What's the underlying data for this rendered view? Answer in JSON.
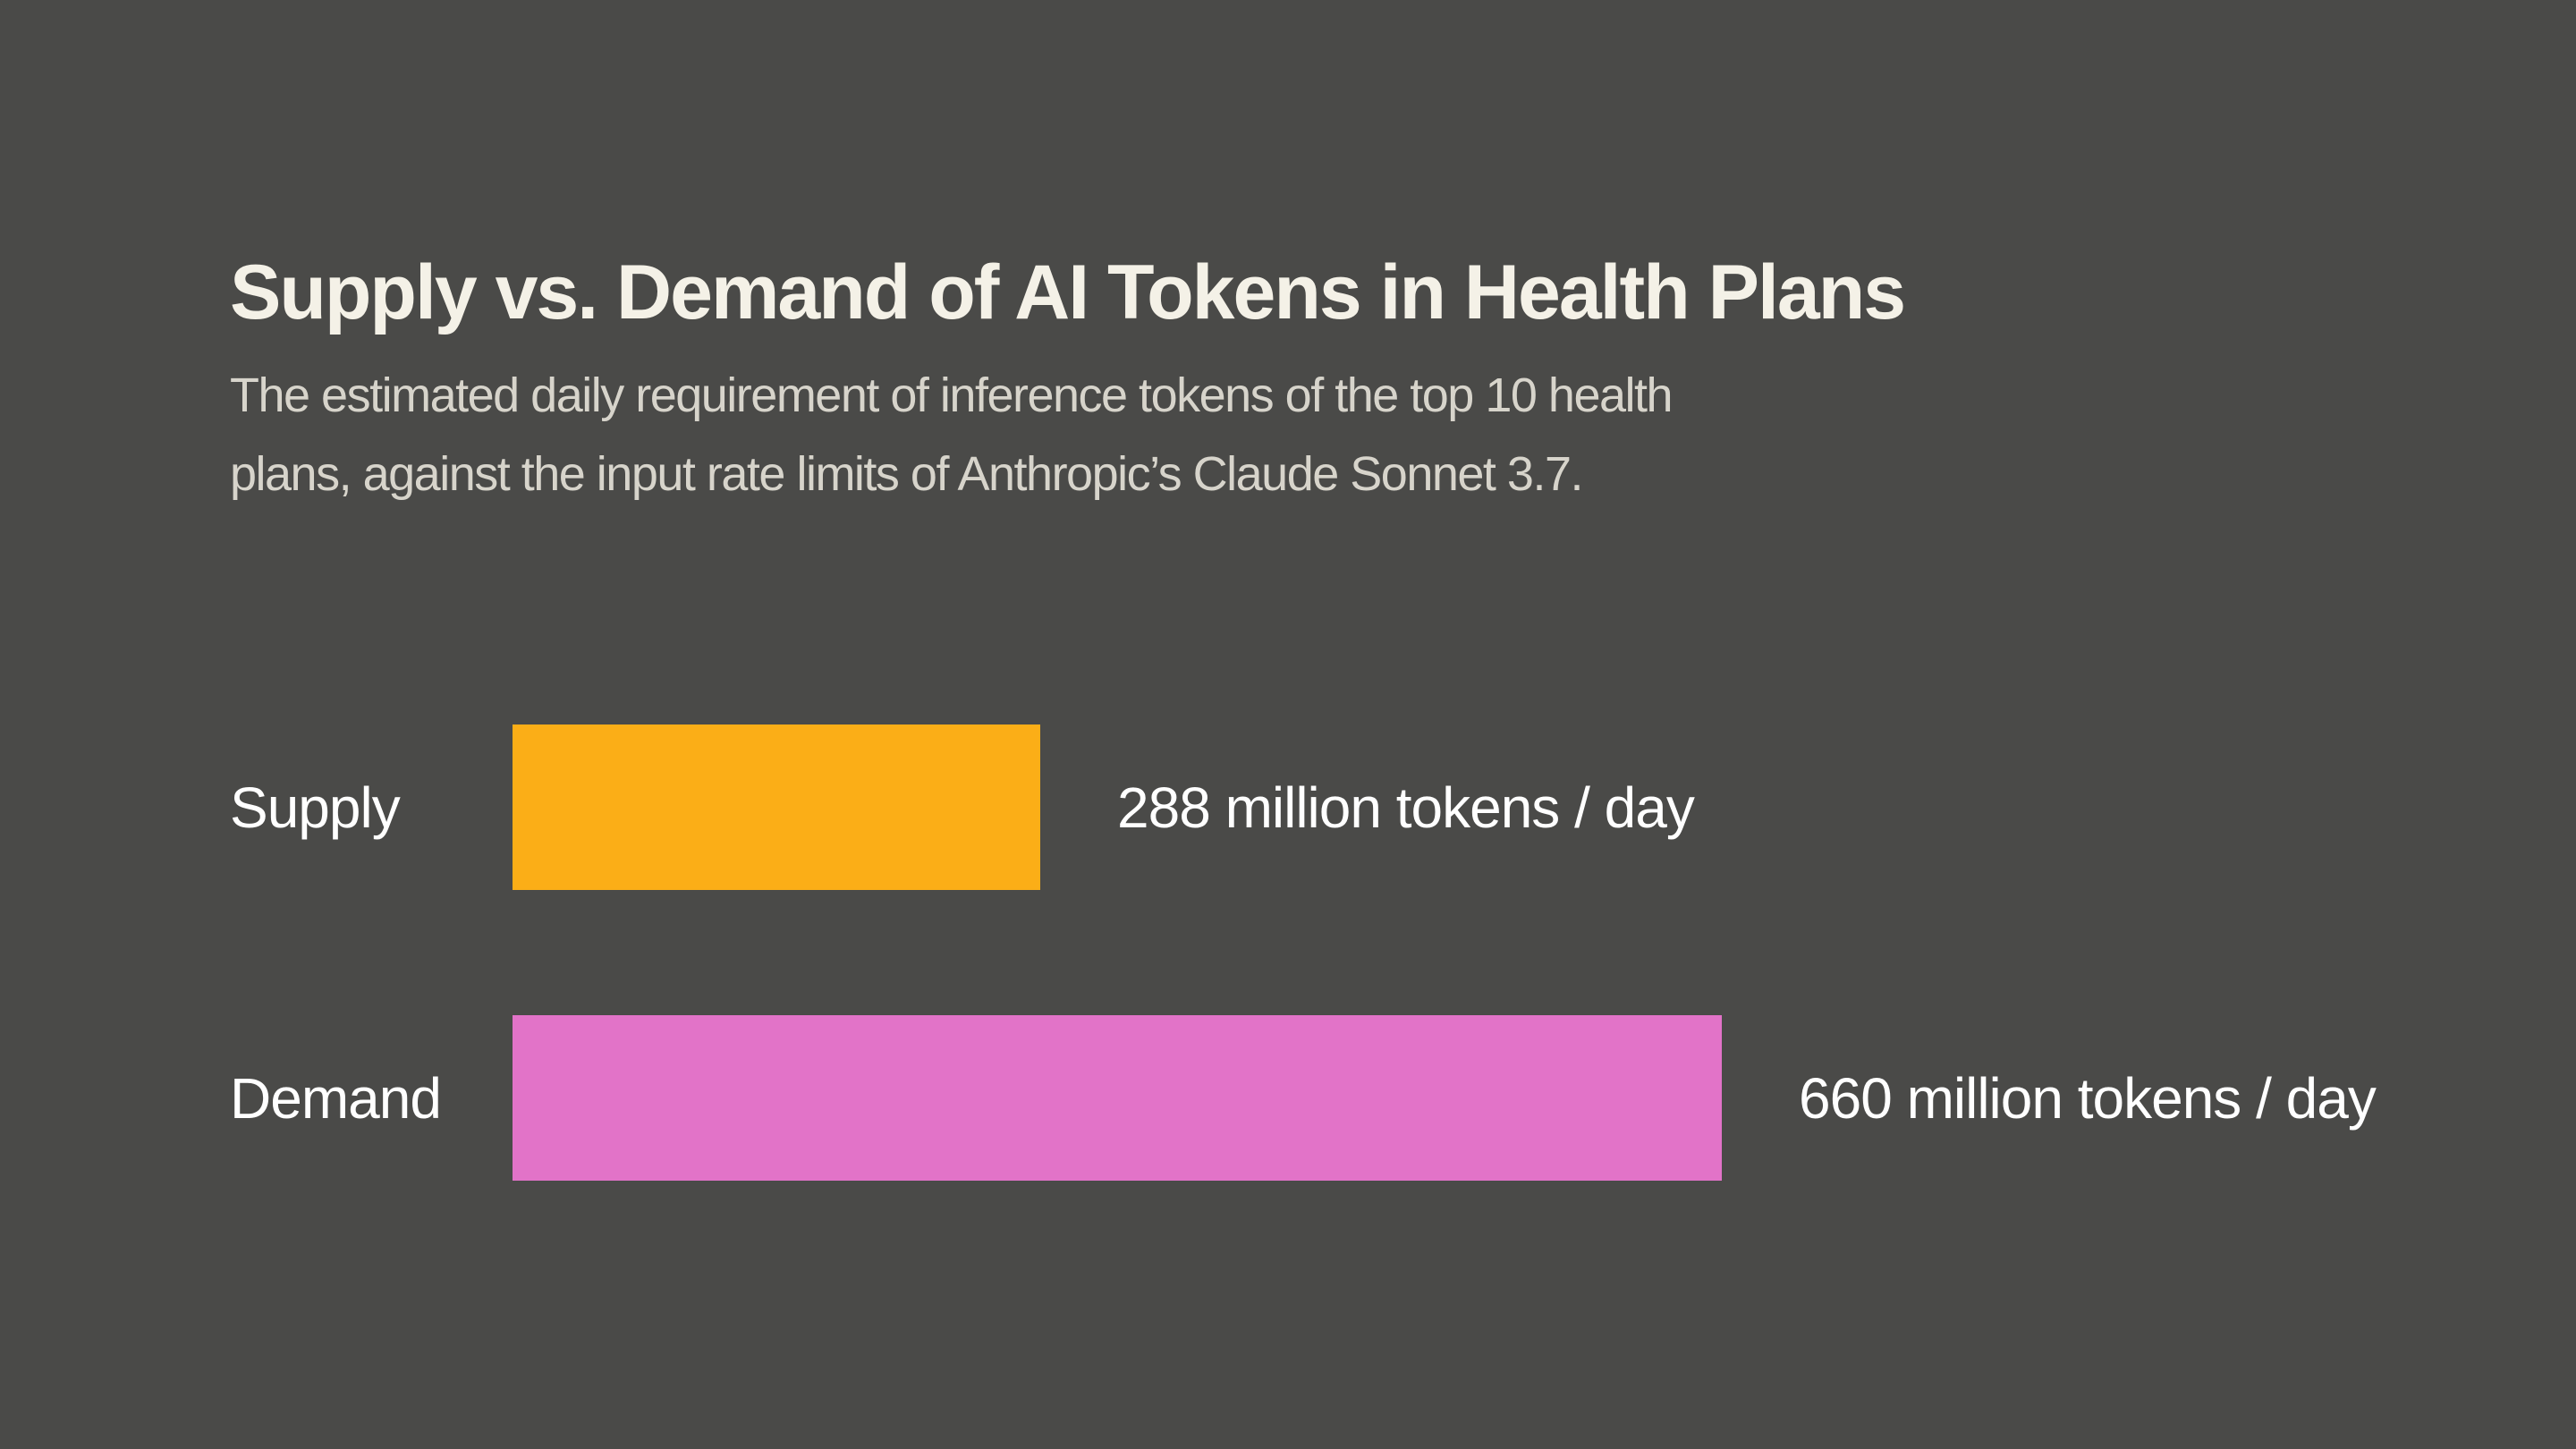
{
  "header": {
    "title": "Supply vs. Demand of AI Tokens in Health Plans",
    "subtitle_lines": [
      "The estimated daily requirement of inference tokens of the top 10 health",
      "plans, against the input rate limits of Anthropic’s Claude Sonnet 3.7."
    ]
  },
  "chart_data": {
    "type": "bar",
    "orientation": "horizontal",
    "title": "Supply vs. Demand of AI Tokens in Health Plans",
    "subtitle": "The estimated daily requirement of inference tokens of the top 10 health plans, against the input rate limits of Anthropic’s Claude Sonnet 3.7.",
    "categories": [
      "Supply",
      "Demand"
    ],
    "values": [
      288,
      660
    ],
    "value_labels": [
      "288 million tokens / day",
      "660 million tokens / day"
    ],
    "unit": "million tokens / day",
    "colors": [
      "#fbae17",
      "#e273c8"
    ],
    "xlim": [
      0,
      660
    ],
    "grid": false,
    "legend": false
  },
  "colors": {
    "background": "#4a4a48",
    "title_text": "#f4f1e7",
    "subtitle_text": "#d7d4cb",
    "label_text": "#ffffff",
    "supply_bar": "#fbae17",
    "demand_bar": "#e273c8"
  }
}
